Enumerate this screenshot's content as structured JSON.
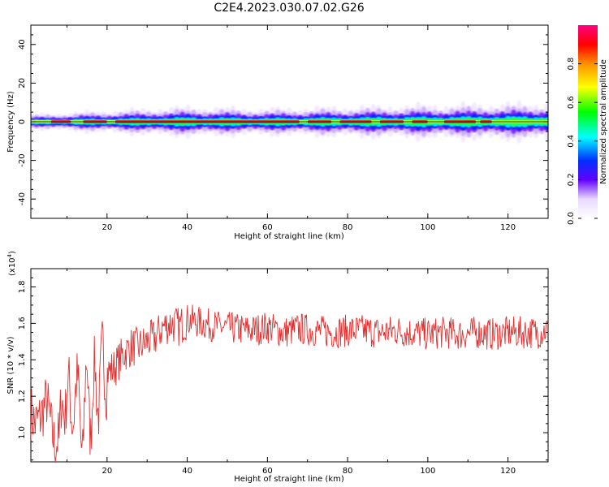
{
  "title": "C2E4.2023.030.07.02.G26",
  "chart_data": [
    {
      "type": "heatmap",
      "xlabel": "Height of straight line (km)",
      "ylabel": "Frequency (Hz)",
      "xlim": [
        1,
        130
      ],
      "ylim": [
        -50,
        50
      ],
      "xticks": [
        20,
        40,
        60,
        80,
        100,
        120
      ],
      "yticks": [
        -40,
        -20,
        0,
        20,
        40
      ],
      "band_center_hz": 0,
      "band_halfwidth_hz": [
        2,
        3,
        4,
        3.5,
        4.5,
        5
      ],
      "band_halfwidth_x": [
        1,
        20,
        40,
        60,
        100,
        130
      ],
      "peak_segments": [
        [
          6,
          11
        ],
        [
          14,
          20
        ],
        [
          22,
          68
        ],
        [
          70,
          76
        ],
        [
          78,
          86
        ],
        [
          88,
          94
        ],
        [
          96,
          100
        ],
        [
          104,
          112
        ],
        [
          113,
          116
        ]
      ],
      "colorbar": {
        "label": "Normalized spectral amplitude",
        "range": [
          0,
          1
        ],
        "ticks": [
          "0.0",
          "0.2",
          "0.4",
          "0.6",
          "0.8"
        ],
        "colors": [
          "#ffffff",
          "#8000ff",
          "#0000ff",
          "#00ffff",
          "#00ff00",
          "#ffff00",
          "#ff8000",
          "#ff0000",
          "#ff0080"
        ]
      }
    },
    {
      "type": "line",
      "xlabel": "Height of straight line (km)",
      "ylabel": "SNR (10 * v/v)",
      "multiplier_label": "(x10",
      "multiplier_exp": "4",
      "multiplier_close": ")",
      "xlim": [
        1,
        130
      ],
      "ylim": [
        0.84,
        1.9
      ],
      "xticks": [
        20,
        40,
        60,
        80,
        100,
        120
      ],
      "yticks": [
        "1.0",
        "1.2",
        "1.4",
        "1.6",
        "1.8"
      ],
      "yticks_values": [
        1.0,
        1.2,
        1.4,
        1.6,
        1.8
      ],
      "line_color": "#e03030",
      "series": [
        {
          "x": [
            1,
            2,
            3,
            4,
            5,
            6,
            7,
            8,
            9,
            10,
            11,
            12,
            13,
            14,
            15,
            16,
            17,
            18,
            19,
            20,
            22,
            24,
            26,
            28,
            30,
            32,
            34,
            36,
            38,
            40,
            44,
            48,
            52,
            56,
            60,
            64,
            68,
            72,
            76,
            80,
            84,
            88,
            92,
            96,
            100,
            104,
            108,
            112,
            116,
            120,
            124,
            128,
            130
          ],
          "y": [
            1.12,
            1.05,
            1.07,
            1.12,
            1.18,
            1.04,
            0.92,
            0.98,
            1.1,
            1.3,
            1.05,
            1.25,
            1.15,
            0.95,
            1.35,
            1.05,
            1.3,
            1.2,
            1.4,
            1.33,
            1.36,
            1.43,
            1.47,
            1.47,
            1.5,
            1.52,
            1.58,
            1.6,
            1.58,
            1.62,
            1.6,
            1.58,
            1.57,
            1.56,
            1.58,
            1.55,
            1.57,
            1.56,
            1.55,
            1.56,
            1.56,
            1.55,
            1.56,
            1.55,
            1.54,
            1.55,
            1.54,
            1.55,
            1.54,
            1.55,
            1.55,
            1.55,
            1.57
          ]
        }
      ]
    }
  ]
}
